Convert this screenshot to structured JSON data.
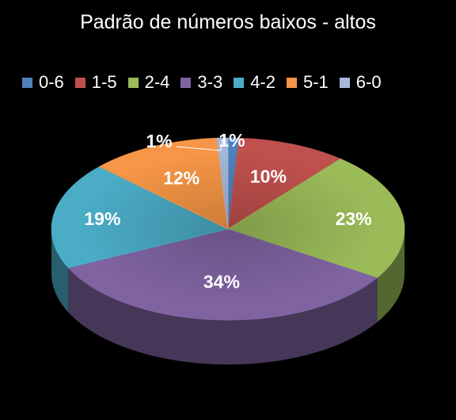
{
  "chart_data": {
    "type": "pie",
    "title": "Padrão de números baixos - altos",
    "legend_position": "top",
    "categories": [
      "0-6",
      "1-5",
      "2-4",
      "3-3",
      "4-2",
      "5-1",
      "6-0"
    ],
    "values": [
      1,
      10,
      23,
      34,
      19,
      12,
      1
    ],
    "labels": [
      "1%",
      "10%",
      "23%",
      "34%",
      "19%",
      "12%",
      "1%"
    ],
    "colors": [
      "#4f81bd",
      "#c0504d",
      "#9bbb59",
      "#8064a2",
      "#4bacc6",
      "#f79646",
      "#a5b8db"
    ],
    "label_colors": [
      "#ffffff",
      "#ffffff",
      "#ffffff",
      "#ffffff",
      "#ffffff",
      "#ffffff",
      "#000000"
    ]
  }
}
